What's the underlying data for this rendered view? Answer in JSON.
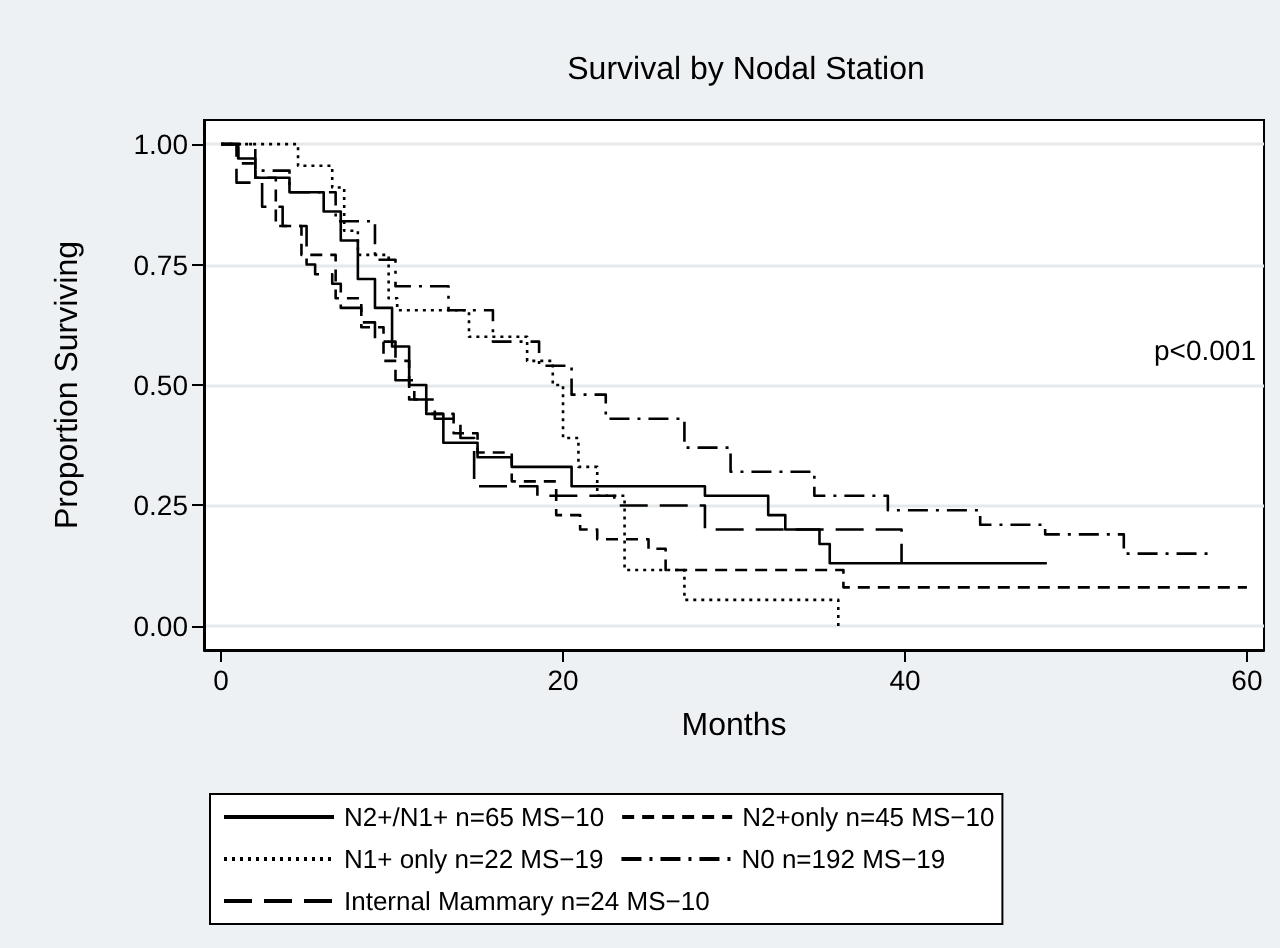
{
  "chart_data": {
    "type": "step",
    "title": "Survival by Nodal Station",
    "xlabel": "Months",
    "ylabel": "Proportion Surviving",
    "annotations": [
      "p<0.001"
    ],
    "xlim": [
      -1,
      61
    ],
    "xticks": [
      0,
      20,
      40,
      60
    ],
    "ylim": [
      -0.05,
      1.05
    ],
    "yticks": [
      {
        "value": 0,
        "label": "0.00"
      },
      {
        "value": 0.25,
        "label": "0.25"
      },
      {
        "value": 0.5,
        "label": "0.50"
      },
      {
        "value": 0.75,
        "label": "0.75"
      },
      {
        "value": 1,
        "label": "1.00"
      }
    ],
    "grid": "y",
    "legend": "bottom",
    "marker": "none",
    "series": [
      {
        "name": "N2+/N1+ n=65 MS−10",
        "color": "#000000",
        "line_style": "solid",
        "x": [
          0,
          1,
          2,
          4,
          6,
          7,
          8,
          9,
          10,
          11,
          12,
          13,
          15,
          17,
          20.5,
          28.3,
          32,
          33,
          35,
          35.6,
          48.3
        ],
        "values": [
          1,
          0.97,
          0.93,
          0.9,
          0.86,
          0.8,
          0.72,
          0.66,
          0.58,
          0.5,
          0.44,
          0.38,
          0.35,
          0.33,
          0.29,
          0.27,
          0.23,
          0.2,
          0.17,
          0.13,
          0.13
        ]
      },
      {
        "name": "N2+only n=45 MS−10",
        "color": "#000000",
        "line_style": "dashed",
        "x": [
          0,
          1,
          2,
          3.2,
          4.7,
          6.7,
          8.2,
          9.5,
          11,
          12,
          13.6,
          15,
          17,
          19.6,
          21,
          22,
          25,
          26,
          36.4,
          60
        ],
        "values": [
          1,
          0.96,
          0.93,
          0.83,
          0.77,
          0.68,
          0.62,
          0.55,
          0.47,
          0.44,
          0.4,
          0.36,
          0.3,
          0.23,
          0.2,
          0.18,
          0.16,
          0.116,
          0.08,
          0.08
        ]
      },
      {
        "name": "N1+ only n=22 MS−19",
        "color": "#000000",
        "line_style": "dotted",
        "x": [
          0,
          4.5,
          6.5,
          7.2,
          8,
          9.8,
          10.3,
          14.5,
          17.9,
          19.4,
          20,
          20.9,
          22,
          23.6,
          27.1,
          36.1,
          36.1
        ],
        "values": [
          1,
          0.955,
          0.91,
          0.82,
          0.77,
          0.68,
          0.655,
          0.6,
          0.55,
          0.5,
          0.39,
          0.33,
          0.27,
          0.116,
          0.054,
          0.054,
          0
        ]
      },
      {
        "name": "N0 n=192 MS−19",
        "color": "#000000",
        "line_style": "dashdot",
        "x": [
          0,
          2,
          4,
          6.7,
          9,
          10.2,
          13.3,
          15.9,
          18.6,
          20.5,
          22.5,
          27.1,
          29.8,
          34.7,
          39,
          44.4,
          48.2,
          52.8,
          57.8
        ],
        "values": [
          1,
          0.945,
          0.9,
          0.84,
          0.76,
          0.705,
          0.655,
          0.59,
          0.54,
          0.48,
          0.43,
          0.37,
          0.32,
          0.27,
          0.24,
          0.21,
          0.19,
          0.15,
          0.15
        ]
      },
      {
        "name": "Internal Mammary n=24 MS−10",
        "color": "#000000",
        "line_style": "longdash",
        "x": [
          0,
          0.9,
          2.4,
          3.6,
          5,
          5.5,
          6.5,
          7,
          8.2,
          9,
          10.2,
          11.3,
          12.5,
          14,
          14.8,
          18.5,
          23,
          28.3,
          39.8,
          39.8
        ],
        "values": [
          1,
          0.92,
          0.87,
          0.83,
          0.75,
          0.73,
          0.71,
          0.66,
          0.63,
          0.59,
          0.51,
          0.47,
          0.43,
          0.39,
          0.29,
          0.27,
          0.25,
          0.2,
          0.2,
          0.13
        ]
      }
    ]
  }
}
